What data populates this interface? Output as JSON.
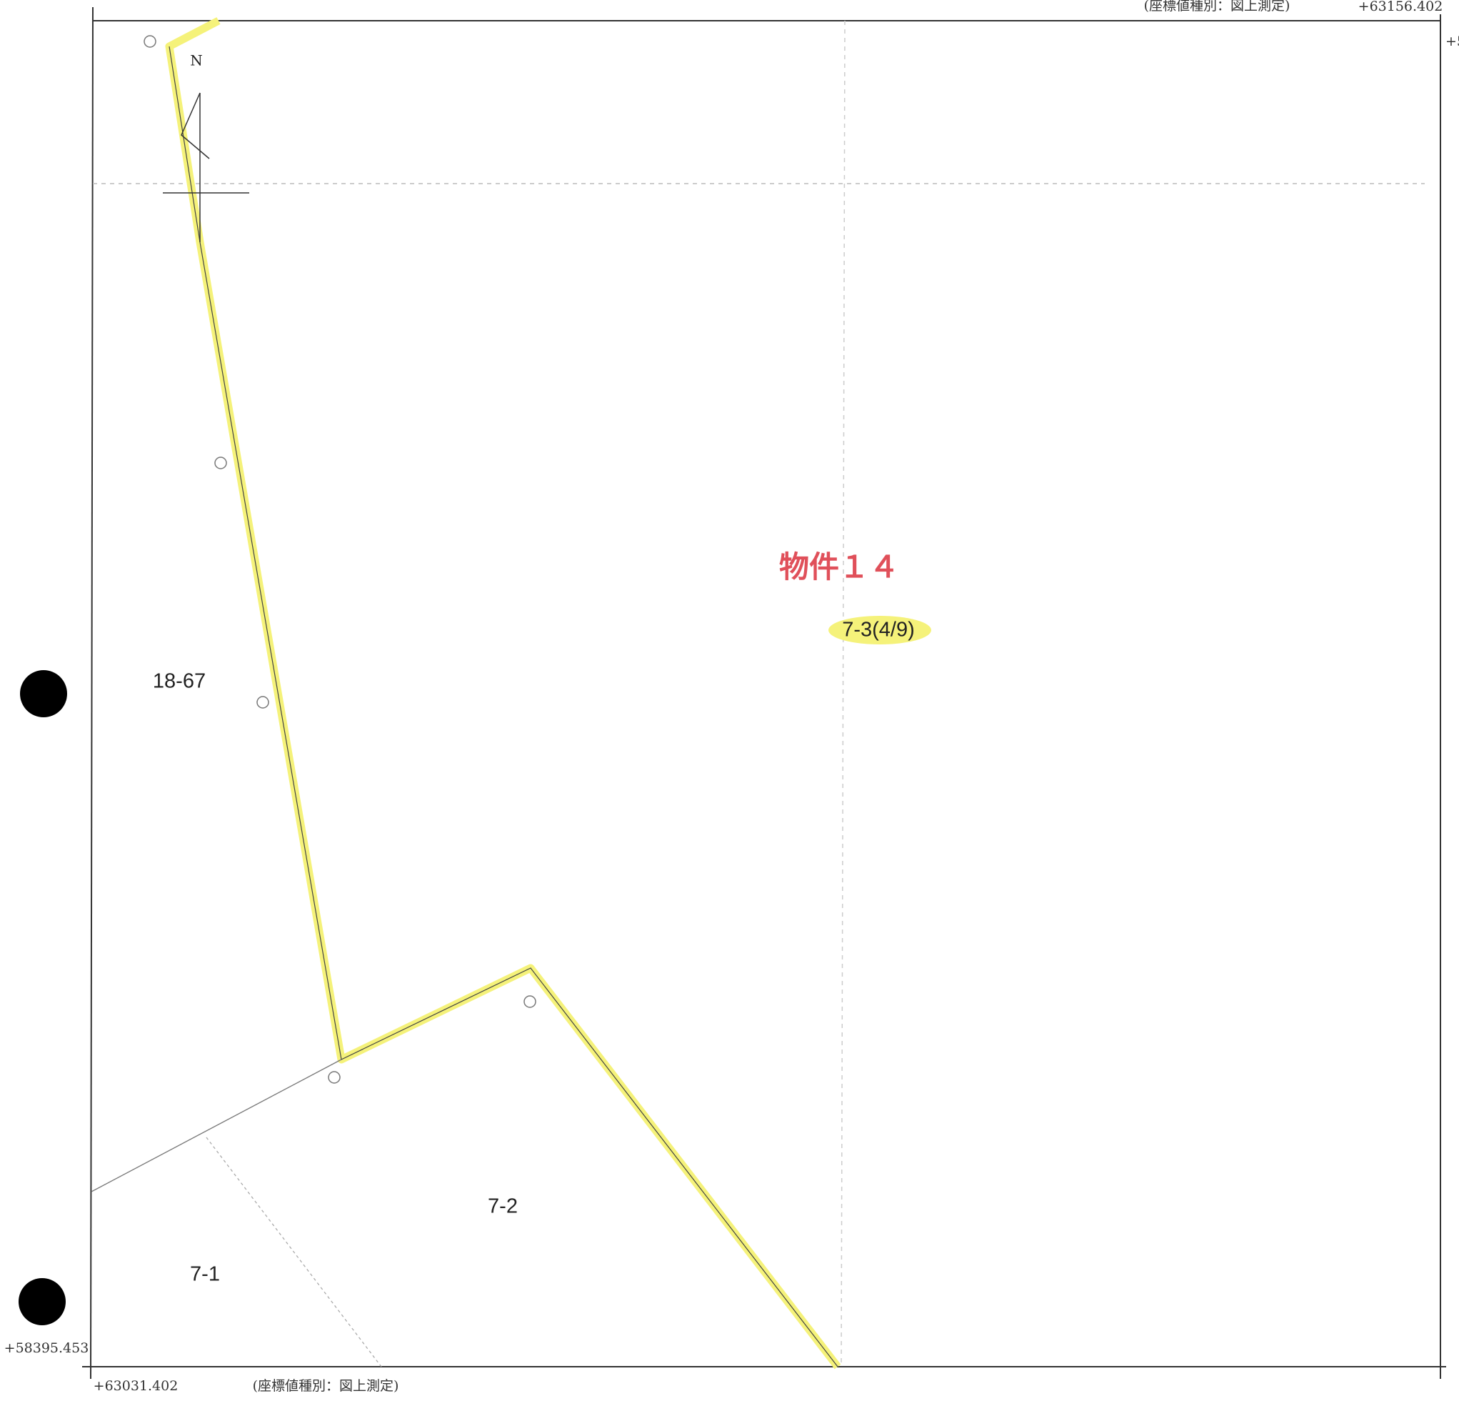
{
  "map": {
    "top_coordinate_type": "(座標値種別：図上測定)",
    "top_right_coordinate": "+63156.402",
    "right_edge_coordinate": "+5",
    "north_label": "N",
    "property_title": "物件１４",
    "parcels": {
      "target": "7-3(4/9)",
      "west": "18-67",
      "south": "7-2",
      "southwest": "7-1"
    },
    "left_coordinate": "+58395.453",
    "bottom_left_coordinate": "+63031.402",
    "bottom_coordinate_type": "(座標値種別：図上測定)"
  }
}
